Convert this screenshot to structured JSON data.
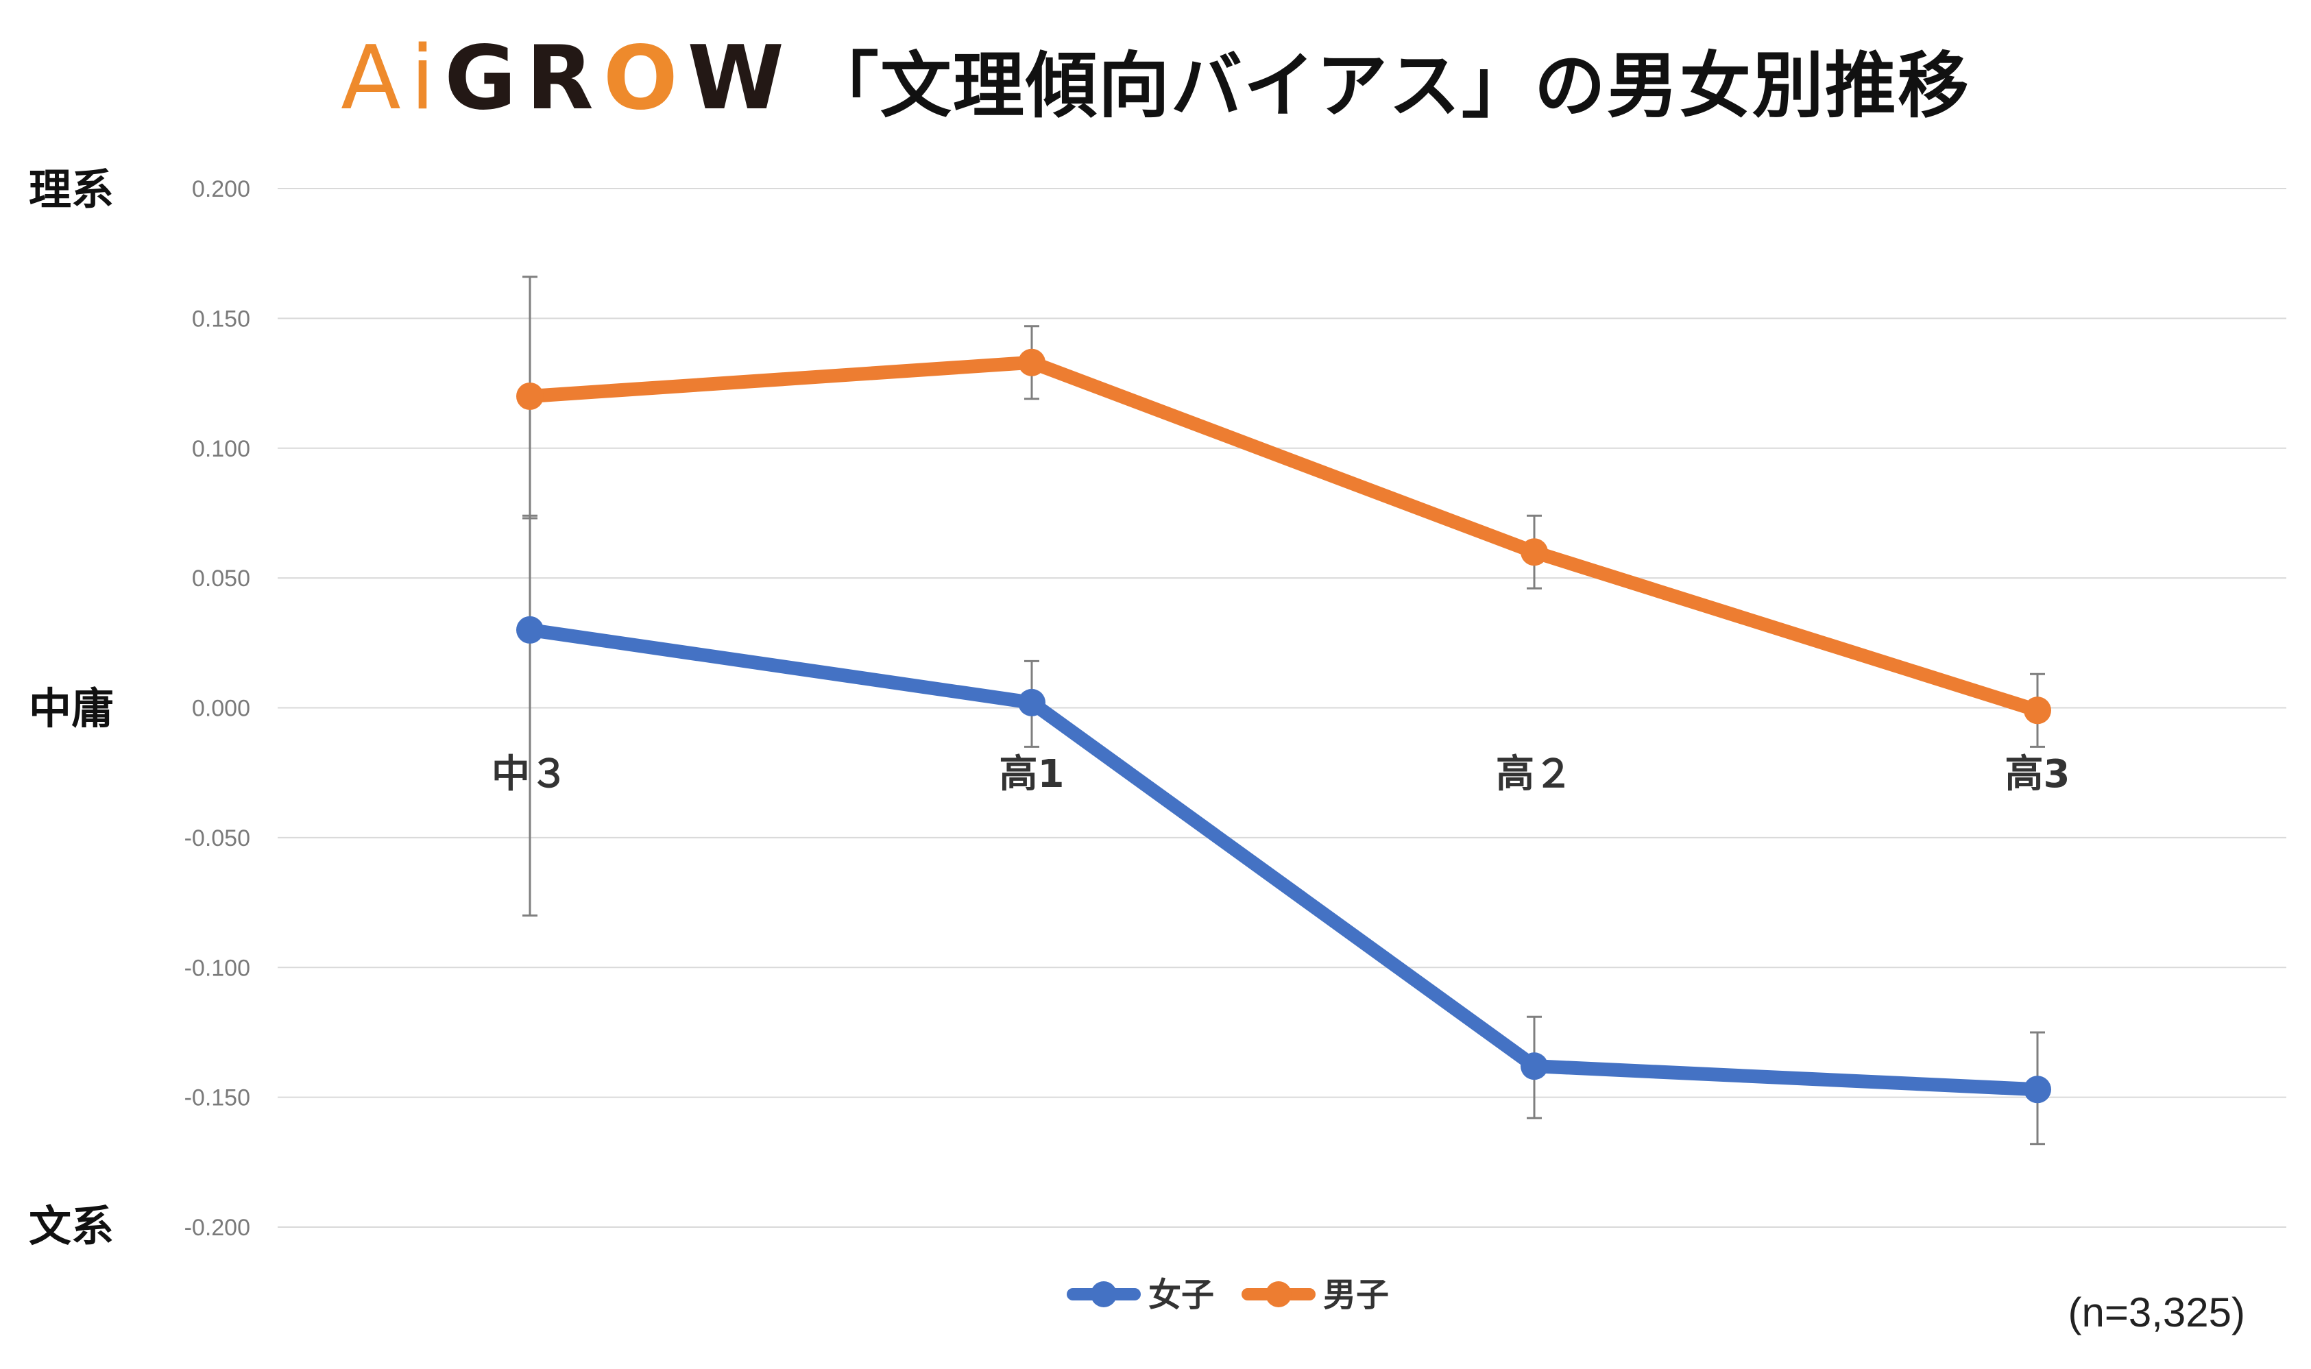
{
  "header": {
    "logo_part1": "Ai",
    "logo_part2": "GR",
    "logo_part3": "O",
    "logo_part4": "W",
    "title": "「文理傾向バイアス」の男女別推移"
  },
  "side_labels": {
    "top": "理系",
    "middle": "中庸",
    "bottom": "文系"
  },
  "sample_note": "(n=3,325)",
  "colors": {
    "female": "#4472c4",
    "male": "#ed7d31",
    "grid": "#d9d9d9",
    "error_bar": "#7f7f7f"
  },
  "chart_data": {
    "type": "line",
    "categories": [
      "中３",
      "高1",
      "高２",
      "高3"
    ],
    "series": [
      {
        "name": "女子",
        "values": [
          0.03,
          0.002,
          -0.138,
          -0.147
        ],
        "err_high": [
          0.074,
          0.018,
          -0.119,
          -0.125
        ],
        "err_low": [
          -0.08,
          -0.015,
          -0.158,
          -0.168
        ]
      },
      {
        "name": "男子",
        "values": [
          0.12,
          0.133,
          0.06,
          -0.001
        ],
        "err_high": [
          0.166,
          0.147,
          0.074,
          0.013
        ],
        "err_low": [
          0.073,
          0.119,
          0.046,
          -0.015
        ]
      }
    ],
    "yticks": [
      "0.200",
      "0.150",
      "0.100",
      "0.050",
      "0.000",
      "-0.050",
      "-0.100",
      "-0.150",
      "-0.200"
    ],
    "ylim": [
      -0.2,
      0.2
    ],
    "grid": true,
    "legend": "bottom-center",
    "error_bars": true
  }
}
